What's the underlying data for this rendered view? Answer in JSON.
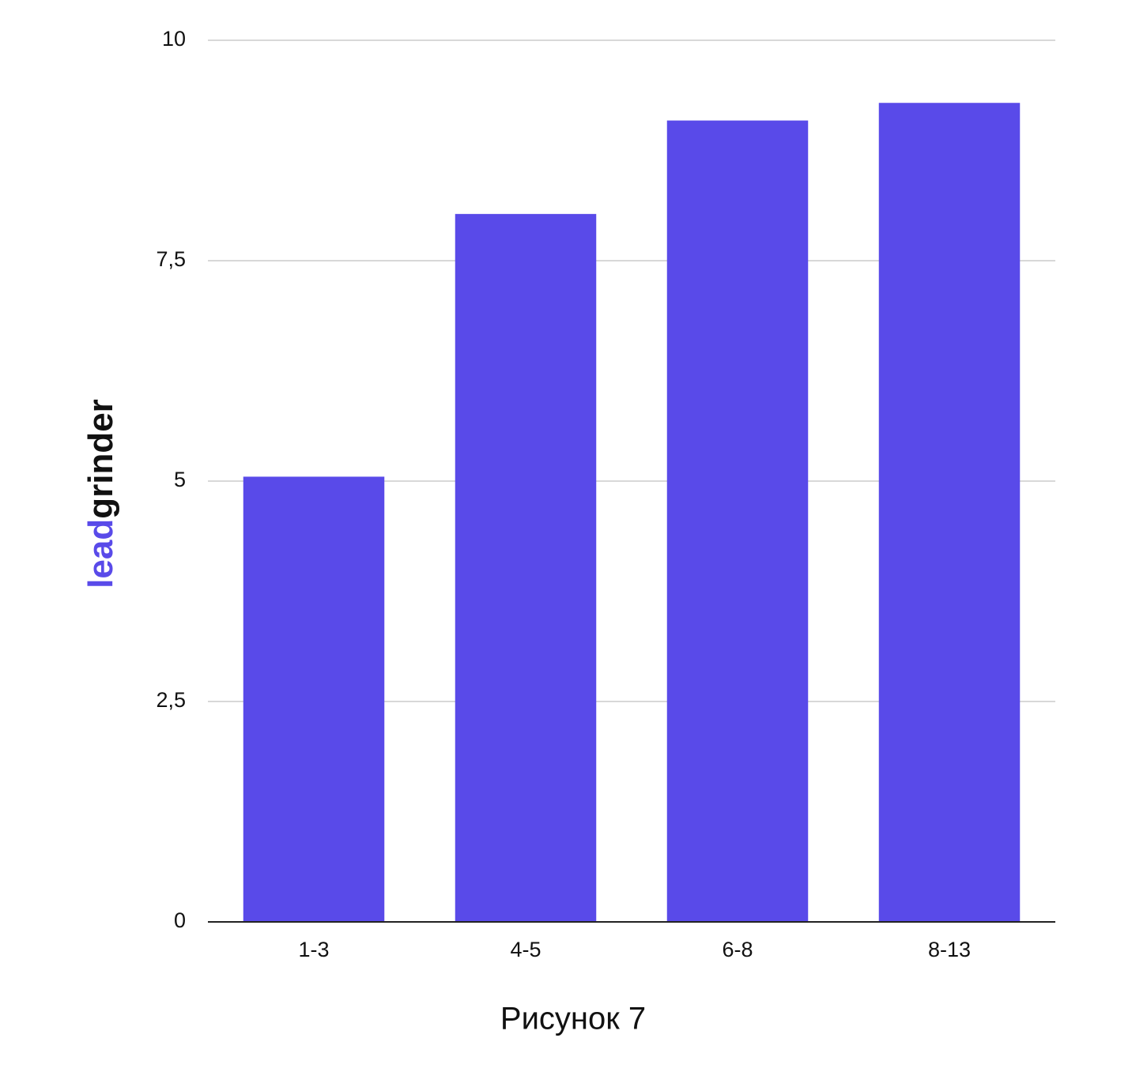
{
  "chart_data": {
    "type": "bar",
    "xlabel": "Рисунок 7",
    "categories": [
      "1-3",
      "4-5",
      "6-8",
      "8-13"
    ],
    "values": [
      5.05,
      8.03,
      9.09,
      9.29
    ],
    "color": "#594ae9",
    "ylim": [
      0,
      10
    ],
    "yticks": [
      0,
      {
        "value": 2.5,
        "label": "2,5"
      },
      5,
      {
        "value": 7.5,
        "label": "7,5"
      },
      10
    ],
    "grid": true,
    "watermark": [
      "lead",
      "grinder"
    ]
  }
}
